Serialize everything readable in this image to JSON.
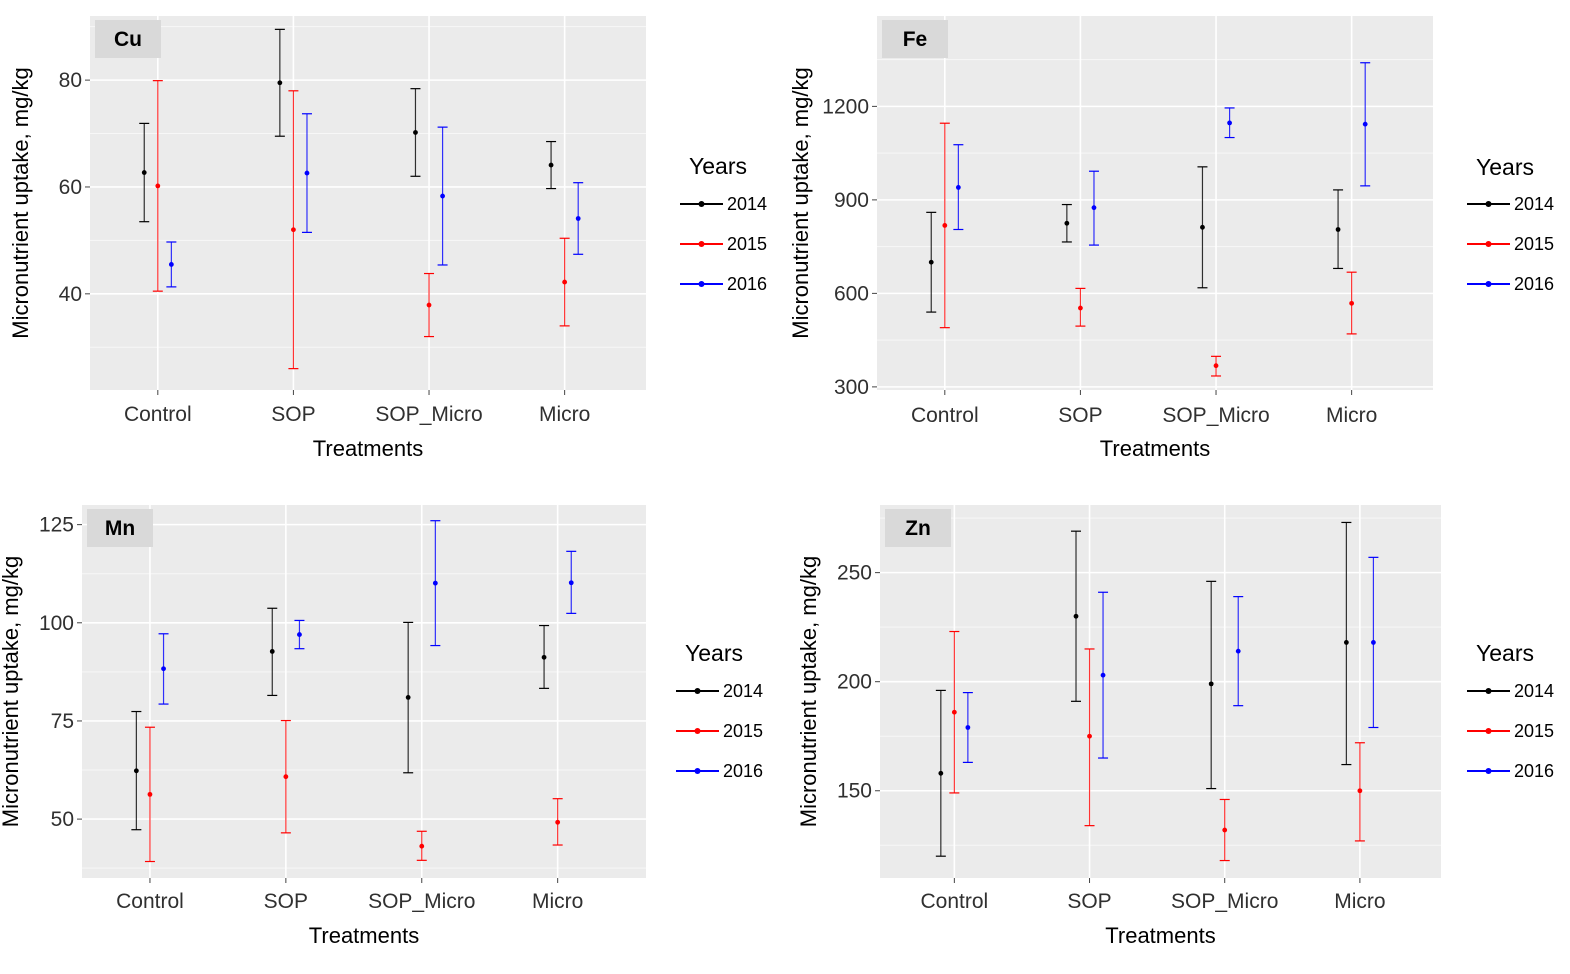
{
  "chart_data": [
    {
      "type": "errorbar",
      "title": "Cu",
      "xlabel": "Treatments",
      "ylabel": "Micronutrient uptake, mg/kg",
      "categories": [
        "Control",
        "SOP",
        "SOP_Micro",
        "Micro"
      ],
      "yticks": [
        40,
        60,
        80
      ],
      "ylim": [
        22,
        92
      ],
      "legend_title": "Years",
      "series": [
        {
          "name": "2014",
          "color": "#000000",
          "mean": [
            62.7,
            79.5,
            70.2,
            64.1
          ],
          "low": [
            53.5,
            69.5,
            62.0,
            59.7
          ],
          "high": [
            71.9,
            89.5,
            78.4,
            68.5
          ]
        },
        {
          "name": "2015",
          "color": "#ff0000",
          "mean": [
            60.2,
            52.0,
            37.9,
            42.2
          ],
          "low": [
            40.5,
            26.0,
            32.0,
            34.0
          ],
          "high": [
            79.9,
            78.0,
            43.8,
            50.4
          ]
        },
        {
          "name": "2016",
          "color": "#0000ff",
          "mean": [
            45.5,
            62.6,
            58.3,
            54.1
          ],
          "low": [
            41.3,
            51.5,
            45.4,
            47.4
          ],
          "high": [
            49.7,
            73.7,
            71.2,
            60.8
          ]
        }
      ]
    },
    {
      "type": "errorbar",
      "title": "Fe",
      "xlabel": "Treatments",
      "ylabel": "Micronutrient uptake, mg/kg",
      "categories": [
        "Control",
        "SOP",
        "SOP_Micro",
        "Micro"
      ],
      "yticks": [
        300,
        600,
        900,
        1200
      ],
      "ylim": [
        290,
        1490
      ],
      "legend_title": "Years",
      "series": [
        {
          "name": "2014",
          "color": "#000000",
          "mean": [
            700,
            825,
            812,
            805
          ],
          "low": [
            540,
            765,
            618,
            680
          ],
          "high": [
            860,
            885,
            1006,
            932
          ]
        },
        {
          "name": "2015",
          "color": "#ff0000",
          "mean": [
            818,
            553,
            368,
            568
          ],
          "low": [
            490,
            495,
            335,
            470
          ],
          "high": [
            1146,
            616,
            398,
            668
          ]
        },
        {
          "name": "2016",
          "color": "#0000ff",
          "mean": [
            940,
            875,
            1147,
            1143
          ],
          "low": [
            805,
            755,
            1100,
            945
          ],
          "high": [
            1077,
            992,
            1195,
            1340
          ]
        }
      ]
    },
    {
      "type": "errorbar",
      "title": "Mn",
      "xlabel": "Treatments",
      "ylabel": "Micronutrient uptake, mg/kg",
      "categories": [
        "Control",
        "SOP",
        "SOP_Micro",
        "Micro"
      ],
      "yticks": [
        50,
        75,
        100,
        125
      ],
      "ylim": [
        35,
        130
      ],
      "legend_title": "Years",
      "series": [
        {
          "name": "2014",
          "color": "#000000",
          "mean": [
            62.3,
            92.7,
            81.0,
            91.2
          ],
          "low": [
            47.3,
            81.5,
            61.8,
            83.3
          ],
          "high": [
            77.4,
            103.7,
            100.1,
            99.3
          ]
        },
        {
          "name": "2015",
          "color": "#ff0000",
          "mean": [
            56.3,
            60.8,
            43.1,
            49.2
          ],
          "low": [
            39.2,
            46.5,
            39.5,
            43.4
          ],
          "high": [
            73.4,
            75.1,
            46.9,
            55.2
          ]
        },
        {
          "name": "2016",
          "color": "#0000ff",
          "mean": [
            88.3,
            97.0,
            110.1,
            110.2
          ],
          "low": [
            79.3,
            93.4,
            94.2,
            102.4
          ],
          "high": [
            97.2,
            100.6,
            126.0,
            118.2
          ]
        }
      ]
    },
    {
      "type": "errorbar",
      "title": "Zn",
      "xlabel": "Treatments",
      "ylabel": "Micronutrient uptake, mg/kg",
      "categories": [
        "Control",
        "SOP",
        "SOP_Micro",
        "Micro"
      ],
      "yticks": [
        150,
        200,
        250
      ],
      "ylim": [
        110,
        281
      ],
      "legend_title": "Years",
      "series": [
        {
          "name": "2014",
          "color": "#000000",
          "mean": [
            158,
            230,
            199,
            218
          ],
          "low": [
            120,
            191,
            151,
            162
          ],
          "high": [
            196,
            269,
            246,
            273
          ]
        },
        {
          "name": "2015",
          "color": "#ff0000",
          "mean": [
            186,
            175,
            132,
            150
          ],
          "low": [
            149,
            134,
            118,
            127
          ],
          "high": [
            223,
            215,
            146,
            172
          ]
        },
        {
          "name": "2016",
          "color": "#0000ff",
          "mean": [
            179,
            203,
            214,
            218
          ],
          "low": [
            163,
            165,
            189,
            179
          ],
          "high": [
            195,
            241,
            239,
            257
          ]
        }
      ]
    }
  ]
}
